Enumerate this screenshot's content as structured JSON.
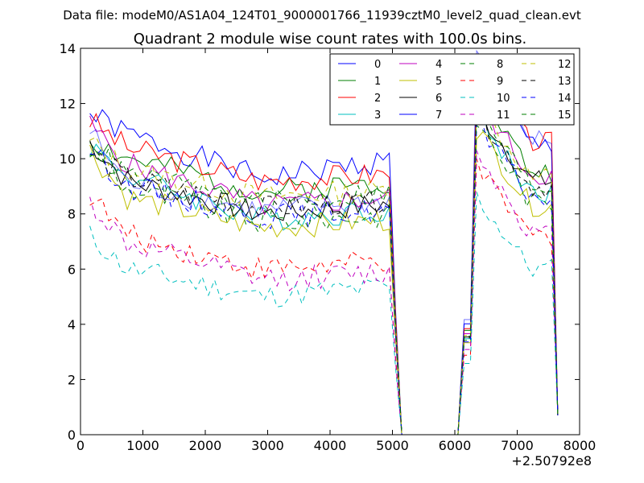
{
  "chart_data": {
    "type": "line",
    "suptitle": "Data file: modeM0/AS1A04_124T01_9000001766_11939cztM0_level2_quad_clean.evt",
    "title": "Quadrant 2 module wise count rates with 100.0s bins.",
    "xlabel": "",
    "ylabel": "",
    "x_offset_label": "+2.50792e8",
    "xlim": [
      0,
      8000
    ],
    "ylim": [
      0,
      14
    ],
    "x_ticks": [
      0,
      1000,
      2000,
      3000,
      4000,
      5000,
      6000,
      7000,
      8000
    ],
    "y_ticks": [
      0,
      2,
      4,
      6,
      8,
      10,
      12,
      14
    ],
    "legend_location": "top-right",
    "x_start": 150,
    "x_step": 100,
    "gap": {
      "drop_start": 5150,
      "zero_until": 6150,
      "rise_at": 6350,
      "end": 7650
    },
    "series": [
      {
        "name": "0",
        "color": "#0000ff",
        "dash": "solid",
        "first": 11.6,
        "early": 10.9,
        "mid": 9.3,
        "late": 10.0,
        "peak": 13.4,
        "tail": 10.5
      },
      {
        "name": "1",
        "color": "#007f00",
        "dash": "solid",
        "first": 10.7,
        "early": 10.0,
        "mid": 8.8,
        "late": 9.2,
        "peak": 12.6,
        "tail": 9.5
      },
      {
        "name": "2",
        "color": "#ff0000",
        "dash": "solid",
        "first": 11.4,
        "early": 10.4,
        "mid": 9.2,
        "late": 9.5,
        "peak": 12.8,
        "tail": 10.6
      },
      {
        "name": "3",
        "color": "#00bfbf",
        "dash": "solid",
        "first": 10.5,
        "early": 9.4,
        "mid": 7.8,
        "late": 8.2,
        "peak": 11.6,
        "tail": 8.8
      },
      {
        "name": "4",
        "color": "#bf00bf",
        "dash": "solid",
        "first": 11.2,
        "early": 9.8,
        "mid": 8.3,
        "late": 8.6,
        "peak": 12.2,
        "tail": 9.4
      },
      {
        "name": "5",
        "color": "#bfbf00",
        "dash": "solid",
        "first": 10.3,
        "early": 8.6,
        "mid": 7.5,
        "late": 7.8,
        "peak": 11.1,
        "tail": 8.3
      },
      {
        "name": "6",
        "color": "#000000",
        "dash": "solid",
        "first": 10.6,
        "early": 9.2,
        "mid": 8.0,
        "late": 8.4,
        "peak": 11.8,
        "tail": 9.2
      },
      {
        "name": "7",
        "color": "#0000ff",
        "dash": "solid",
        "first": 11.0,
        "early": 9.1,
        "mid": 8.1,
        "late": 8.5,
        "peak": 13.9,
        "tail": 10.7
      },
      {
        "name": "8",
        "color": "#007f00",
        "dash": "dashed",
        "first": 10.3,
        "early": 8.9,
        "mid": 7.7,
        "late": 8.0,
        "peak": 11.4,
        "tail": 8.4
      },
      {
        "name": "9",
        "color": "#ff0000",
        "dash": "dashed",
        "first": 8.7,
        "early": 7.2,
        "mid": 6.0,
        "late": 6.3,
        "peak": 9.6,
        "tail": 7.2
      },
      {
        "name": "10",
        "color": "#00bfbf",
        "dash": "dashed",
        "first": 7.2,
        "early": 6.0,
        "mid": 5.0,
        "late": 5.4,
        "peak": 8.6,
        "tail": 6.0
      },
      {
        "name": "11",
        "color": "#bf00bf",
        "dash": "dashed",
        "first": 8.4,
        "early": 6.9,
        "mid": 5.6,
        "late": 5.9,
        "peak": 10.3,
        "tail": 7.3
      },
      {
        "name": "12",
        "color": "#bfbf00",
        "dash": "dashed",
        "first": 10.6,
        "early": 9.6,
        "mid": 8.6,
        "late": 8.9,
        "peak": 12.0,
        "tail": 9.3
      },
      {
        "name": "13",
        "color": "#000000",
        "dash": "dashed",
        "first": 10.2,
        "early": 9.3,
        "mid": 8.2,
        "late": 8.5,
        "peak": 11.7,
        "tail": 9.0
      },
      {
        "name": "14",
        "color": "#0000ff",
        "dash": "dashed",
        "first": 10.4,
        "early": 9.0,
        "mid": 7.9,
        "late": 8.2,
        "peak": 11.2,
        "tail": 8.6
      },
      {
        "name": "15",
        "color": "#007f00",
        "dash": "dashed",
        "first": 10.5,
        "early": 9.4,
        "mid": 8.4,
        "late": 8.8,
        "peak": 11.9,
        "tail": 9.0
      }
    ]
  }
}
